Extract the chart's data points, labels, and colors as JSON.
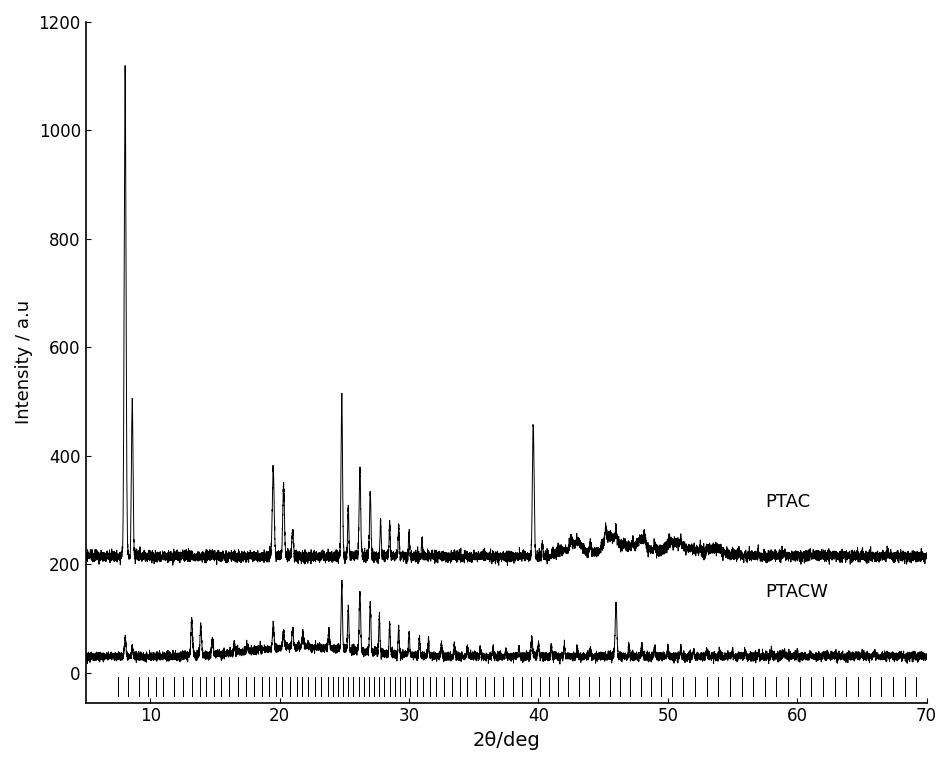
{
  "title": "",
  "xlabel": "2θ/deg",
  "ylabel": "Intensity / a.u",
  "xlim": [
    5,
    70
  ],
  "ylim": [
    -55,
    1200
  ],
  "yticks": [
    0,
    200,
    400,
    600,
    800,
    1000,
    1200
  ],
  "xticks": [
    10,
    20,
    30,
    40,
    50,
    60,
    70
  ],
  "label_ptac": "PTAC",
  "label_ptacw": "PTACW",
  "background_color": "#ffffff",
  "line_color": "#000000",
  "ptac_baseline": 215,
  "ptacw_baseline": 30,
  "tick_marks": [
    7.5,
    8.3,
    9.1,
    9.8,
    10.4,
    11.0,
    11.8,
    12.5,
    13.2,
    13.8,
    14.3,
    14.9,
    15.5,
    16.1,
    16.8,
    17.4,
    18.0,
    18.6,
    19.2,
    19.7,
    20.2,
    20.8,
    21.3,
    21.7,
    22.2,
    22.7,
    23.2,
    23.7,
    24.1,
    24.5,
    24.9,
    25.3,
    25.7,
    26.1,
    26.5,
    26.9,
    27.3,
    27.7,
    28.1,
    28.5,
    28.9,
    29.3,
    29.7,
    30.1,
    30.6,
    31.1,
    31.6,
    32.1,
    32.7,
    33.3,
    33.9,
    34.5,
    35.2,
    35.9,
    36.6,
    37.3,
    38.0,
    38.7,
    39.4,
    40.1,
    40.8,
    41.5,
    42.3,
    43.1,
    43.9,
    44.7,
    45.5,
    46.3,
    47.1,
    47.9,
    48.7,
    49.5,
    50.3,
    51.2,
    52.1,
    53.0,
    53.9,
    54.8,
    55.7,
    56.6,
    57.5,
    58.4,
    59.3,
    60.2,
    61.1,
    62.0,
    62.9,
    63.8,
    64.7,
    65.6,
    66.5,
    67.4,
    68.3,
    69.2
  ]
}
